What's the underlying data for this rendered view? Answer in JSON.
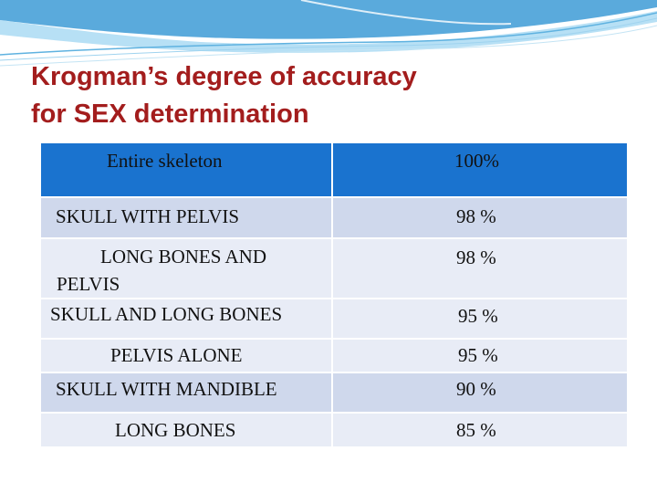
{
  "slide": {
    "title_line1": "Krogman’s degree of accuracy",
    "title_line2": "for SEX determination"
  },
  "table": {
    "header": {
      "label": "Entire skeleton",
      "value": "100%"
    },
    "rows": [
      {
        "label": "SKULL WITH PELVIS",
        "value": "98 %"
      },
      {
        "label": "LONG BONES AND PELVIS",
        "value": "98 %"
      },
      {
        "label": "SKULL AND LONG BONES",
        "value": "95 %"
      },
      {
        "label": "PELVIS ALONE",
        "value": "95 %"
      },
      {
        "label": "SKULL WITH MANDIBLE",
        "value": "90 %"
      },
      {
        "label": "LONG BONES",
        "value": "85 %"
      }
    ]
  },
  "colors": {
    "title": "#a31d1d",
    "header_fill": "#1a73cf",
    "row_fill_a": "#cfd8ec",
    "row_fill_b": "#e8ecf6"
  }
}
